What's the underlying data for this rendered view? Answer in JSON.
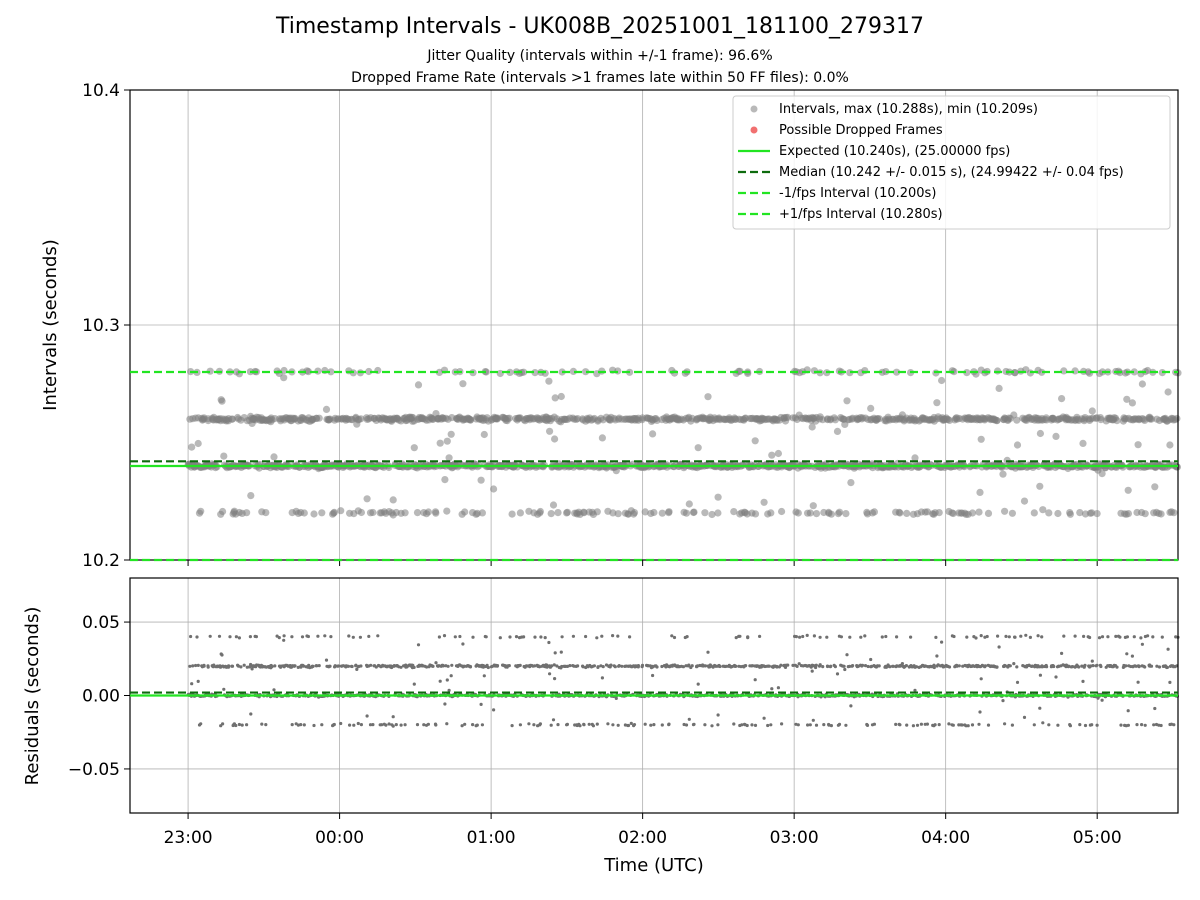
{
  "chart_data": [
    {
      "type": "scatter",
      "title": "Timestamp Intervals - UK008B_20251001_181100_279317",
      "subtitle_lines": [
        "Jitter Quality (intervals within +/-1 frame): 96.6%",
        "Dropped Frame Rate (intervals >1 frames late within 50 FF files): 0.0%"
      ],
      "ylabel": "Intervals (seconds)",
      "ylim": [
        10.2,
        10.4
      ],
      "yticks": [
        "10.2",
        "10.3",
        "10.4"
      ],
      "xlim": [
        "22:37",
        "05:32"
      ],
      "grid": true,
      "legend_position": "top-right",
      "legend": [
        "Intervals, max (10.288s), min (10.209s)",
        "Possible Dropped Frames",
        "Expected (10.240s), (25.00000 fps)",
        "Median (10.242 +/- 0.015 s), (24.99422 +/- 0.04 fps)",
        "-1/fps Interval (10.200s)",
        "+1/fps Interval (10.280s)"
      ],
      "series": [
        {
          "name": "Intervals, max (10.288s), min (10.209s)",
          "kind": "points",
          "color": "#808080",
          "time_range": [
            "23:00",
            "05:32"
          ],
          "values_range": [
            10.209,
            10.288
          ],
          "dominant_levels": [
            10.22,
            10.24,
            10.26,
            10.28
          ]
        },
        {
          "name": "Possible Dropped Frames",
          "kind": "points",
          "color": "#f06060",
          "values": []
        },
        {
          "name": "Expected (10.240s), (25.00000 fps)",
          "kind": "hline",
          "value": 10.24,
          "color": "#22e522",
          "style": "solid"
        },
        {
          "name": "Median (10.242 +/- 0.015 s), (24.99422 +/- 0.04 fps)",
          "kind": "hline",
          "value": 10.242,
          "color": "#0d6b0d",
          "style": "dashed"
        },
        {
          "name": "-1/fps Interval (10.200s)",
          "kind": "hline",
          "value": 10.2,
          "color": "#22e522",
          "style": "dashed"
        },
        {
          "name": "+1/fps Interval (10.280s)",
          "kind": "hline",
          "value": 10.28,
          "color": "#22e522",
          "style": "dashed"
        }
      ]
    },
    {
      "type": "scatter",
      "xlabel": "Time (UTC)",
      "ylabel": "Residuals (seconds)",
      "ylim": [
        -0.08,
        0.08
      ],
      "yticks": [
        "−0.05",
        "0.00",
        "0.05"
      ],
      "xticks": [
        "23:00",
        "00:00",
        "01:00",
        "02:00",
        "03:00",
        "04:00",
        "05:00"
      ],
      "xlim": [
        "22:37",
        "05:32"
      ],
      "grid": true,
      "series": [
        {
          "kind": "points",
          "color": "#707070",
          "values_range": [
            -0.031,
            0.048
          ],
          "dominant_levels": [
            -0.02,
            0.0,
            0.02,
            0.04
          ]
        },
        {
          "kind": "hline",
          "value": 0.0,
          "color": "#22e522",
          "style": "solid"
        },
        {
          "kind": "hline",
          "value": 0.002,
          "color": "#0d6b0d",
          "style": "dashed"
        }
      ]
    }
  ]
}
